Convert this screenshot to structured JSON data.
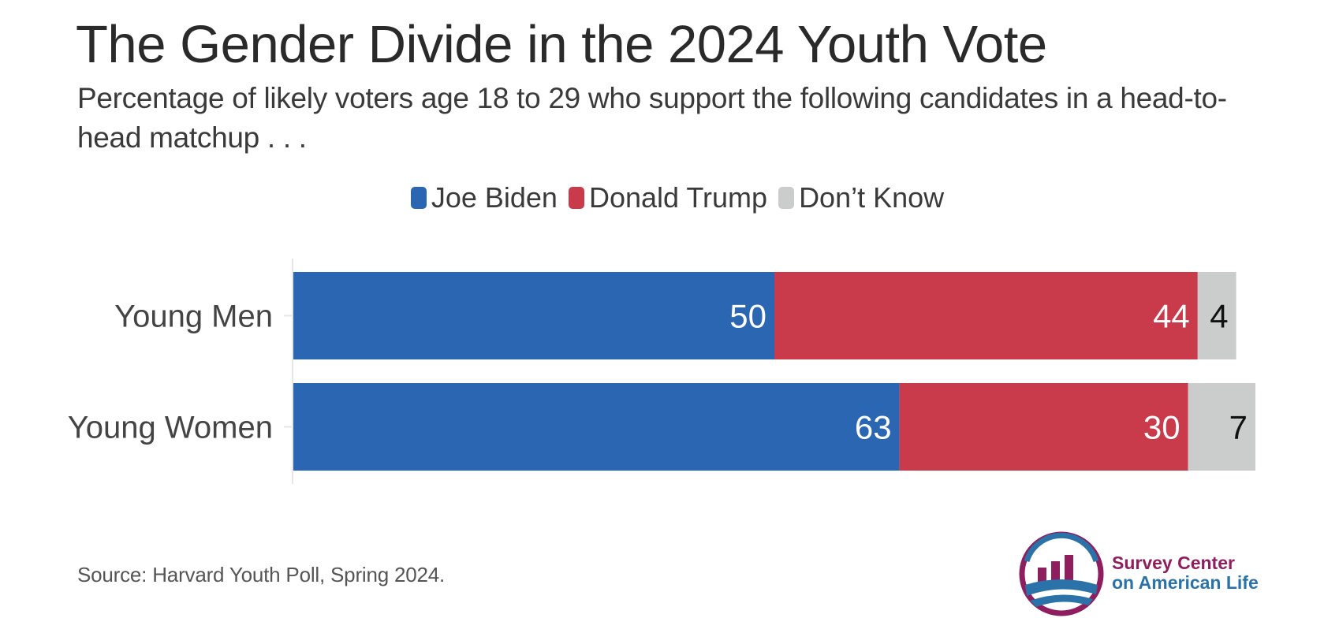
{
  "title": "The Gender Divide in the 2024 Youth Vote",
  "subtitle": "Percentage of likely voters age 18 to 29 who support the following candidates in a head-to-head matchup . . .",
  "legend": [
    {
      "label": "Joe Biden",
      "color": "#2b66b2"
    },
    {
      "label": "Donald Trump",
      "color": "#c93b4a"
    },
    {
      "label": "Don’t Know",
      "color": "#cbcdcd"
    }
  ],
  "source": "Source: Harvard Youth Poll, Spring 2024.",
  "logo": {
    "line1": "Survey Center",
    "line2": "on American Life",
    "icon": "bar-chart-globe-icon"
  },
  "colors": {
    "biden": "#2b66b2",
    "trump": "#c93b4a",
    "dontknow": "#cbcdcd"
  },
  "chart_data": {
    "type": "bar",
    "orientation": "horizontal",
    "stacked": true,
    "categories": [
      "Young Men",
      "Young Women"
    ],
    "series": [
      {
        "name": "Joe Biden",
        "values": [
          50,
          63
        ],
        "label_color": "#ffffff"
      },
      {
        "name": "Donald Trump",
        "values": [
          44,
          30
        ],
        "label_color": "#ffffff"
      },
      {
        "name": "Don’t Know",
        "values": [
          4,
          7
        ],
        "label_color": "#111111"
      }
    ],
    "grid": false,
    "legend_position": "top"
  }
}
